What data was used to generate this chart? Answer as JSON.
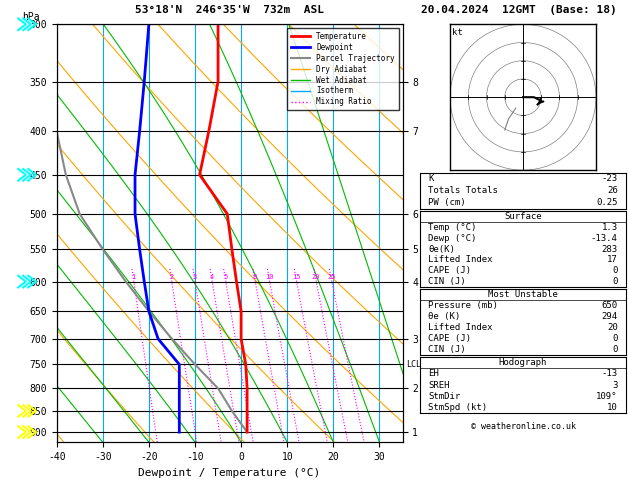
{
  "title_left": "53°18'N  246°35'W  732m  ASL",
  "title_right": "20.04.2024  12GMT  (Base: 18)",
  "xlabel": "Dewpoint / Temperature (°C)",
  "pressure_ticks": [
    300,
    350,
    400,
    450,
    500,
    550,
    600,
    650,
    700,
    750,
    800,
    850,
    900
  ],
  "temp_min": -40,
  "temp_max": 35,
  "km_ticks": [
    1,
    2,
    3,
    4,
    5,
    6,
    7,
    8
  ],
  "km_pressures": [
    900,
    800,
    700,
    600,
    550,
    500,
    400,
    350
  ],
  "lcl_pressure": 750,
  "temperature_profile": {
    "pressure": [
      300,
      350,
      400,
      450,
      500,
      550,
      600,
      650,
      700,
      750,
      800,
      850,
      900
    ],
    "temp": [
      -5,
      -5,
      -7,
      -9,
      -3,
      -2,
      -1,
      0,
      0,
      1,
      1.3,
      1.3,
      1.3
    ]
  },
  "dewpoint_profile": {
    "pressure": [
      300,
      350,
      400,
      450,
      500,
      550,
      600,
      650,
      700,
      750,
      800,
      850,
      900
    ],
    "dewp": [
      -20,
      -21,
      -22,
      -23,
      -23,
      -22,
      -21,
      -20,
      -18,
      -13.4,
      -13.4,
      -13.4,
      -13.4
    ]
  },
  "parcel_profile": {
    "pressure": [
      900,
      850,
      800,
      750,
      700,
      650,
      600,
      550,
      500,
      450,
      400,
      350,
      300
    ],
    "temp": [
      1.3,
      -2,
      -5,
      -10,
      -15,
      -20,
      -25,
      -30,
      -35,
      -38,
      -40,
      -42,
      -44
    ]
  },
  "bg_color": "#ffffff",
  "temp_color": "#ff0000",
  "dewp_color": "#0000ff",
  "parcel_color": "#888888",
  "dry_adiabat_color": "#ffa500",
  "wet_adiabat_color": "#00bb00",
  "isotherm_color": "#00aaff",
  "mixing_ratio_color": "#ff00ff",
  "legend_entries": [
    {
      "label": "Temperature",
      "color": "#ff0000",
      "lw": 2,
      "ls": "-"
    },
    {
      "label": "Dewpoint",
      "color": "#0000ff",
      "lw": 2,
      "ls": "-"
    },
    {
      "label": "Parcel Trajectory",
      "color": "#888888",
      "lw": 1.5,
      "ls": "-"
    },
    {
      "label": "Dry Adiabat",
      "color": "#ffa500",
      "lw": 1,
      "ls": "-"
    },
    {
      "label": "Wet Adiabat",
      "color": "#00bb00",
      "lw": 1,
      "ls": "-"
    },
    {
      "label": "Isotherm",
      "color": "#00aaff",
      "lw": 1,
      "ls": "-"
    },
    {
      "label": "Mixing Ratio",
      "color": "#ff00ff",
      "lw": 1,
      "ls": ":"
    }
  ],
  "cyan_wind_pressures": [
    300,
    450,
    600
  ],
  "yellow_wind_pressures": [
    850,
    900
  ],
  "right_panel": {
    "indices": [
      {
        "label": "K",
        "value": "-23"
      },
      {
        "label": "Totals Totals",
        "value": "26"
      },
      {
        "label": "PW (cm)",
        "value": "0.25"
      }
    ],
    "surface_title": "Surface",
    "surface": [
      {
        "label": "Temp (°C)",
        "value": "1.3"
      },
      {
        "label": "Dewp (°C)",
        "value": "-13.4"
      },
      {
        "label": "θe(K)",
        "value": "283"
      },
      {
        "label": "Lifted Index",
        "value": "17"
      },
      {
        "label": "CAPE (J)",
        "value": "0"
      },
      {
        "label": "CIN (J)",
        "value": "0"
      }
    ],
    "unstable_title": "Most Unstable",
    "unstable": [
      {
        "label": "Pressure (mb)",
        "value": "650"
      },
      {
        "label": "θe (K)",
        "value": "294"
      },
      {
        "label": "Lifted Index",
        "value": "20"
      },
      {
        "label": "CAPE (J)",
        "value": "0"
      },
      {
        "label": "CIN (J)",
        "value": "0"
      }
    ],
    "hodo_title": "Hodograph",
    "hodo": [
      {
        "label": "EH",
        "value": "-13"
      },
      {
        "label": "SREH",
        "value": "3"
      },
      {
        "label": "StmDir",
        "value": "109°"
      },
      {
        "label": "StmSpd (kt)",
        "value": "10"
      }
    ],
    "copyright": "© weatheronline.co.uk"
  }
}
